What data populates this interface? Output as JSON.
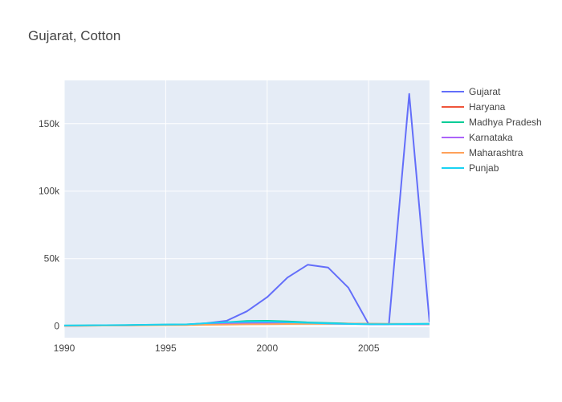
{
  "chart_data": {
    "type": "line",
    "title": "Gujarat, Cotton",
    "xlabel": "",
    "ylabel": "",
    "xlim": [
      1990,
      2008
    ],
    "ylim": [
      -8500,
      182000
    ],
    "x_ticks": [
      1990,
      1995,
      2000,
      2005
    ],
    "x_tick_labels": [
      "1990",
      "1995",
      "2000",
      "2005"
    ],
    "y_ticks": [
      0,
      50000,
      100000,
      150000
    ],
    "y_tick_labels": [
      "0",
      "50k",
      "100k",
      "150k"
    ],
    "grid": true,
    "legend_position": "right",
    "plot_background": "#e5ecf6",
    "x": [
      1990,
      1991,
      1992,
      1993,
      1994,
      1995,
      1996,
      1997,
      1998,
      1999,
      2000,
      2001,
      2002,
      2003,
      2004,
      2005,
      2006,
      2007,
      2008
    ],
    "series": [
      {
        "name": "Gujarat",
        "color": "#636efa",
        "values": [
          300,
          400,
          500,
          600,
          900,
          1100,
          1200,
          2200,
          4000,
          11000,
          21500,
          36000,
          45500,
          43500,
          28500,
          1500,
          1500,
          172000,
          3000
        ]
      },
      {
        "name": "Haryana",
        "color": "#ef553b",
        "values": [
          300,
          350,
          400,
          500,
          700,
          800,
          900,
          1500,
          2000,
          2500,
          2800,
          2600,
          2400,
          2200,
          1900,
          1700,
          1600,
          1500,
          1500
        ]
      },
      {
        "name": "Madhya Pradesh",
        "color": "#00cc96",
        "values": [
          500,
          600,
          700,
          800,
          1000,
          1200,
          1300,
          2000,
          3000,
          3800,
          4000,
          3500,
          2800,
          2400,
          2000,
          1800,
          1700,
          1700,
          1800
        ]
      },
      {
        "name": "Karnataka",
        "color": "#ab63fa",
        "values": [
          300,
          400,
          500,
          600,
          800,
          1000,
          1000,
          1400,
          2000,
          2300,
          2400,
          2200,
          2000,
          1800,
          1700,
          1500,
          1500,
          1500,
          1500
        ]
      },
      {
        "name": "Maharashtra",
        "color": "#ffa15a",
        "values": [
          200,
          300,
          400,
          500,
          600,
          700,
          800,
          1000,
          1200,
          1400,
          1500,
          1600,
          1700,
          1800,
          1900,
          1800,
          1700,
          1600,
          1600
        ]
      },
      {
        "name": "Punjab",
        "color": "#19d3f3",
        "values": [
          500,
          600,
          700,
          800,
          1000,
          1200,
          1300,
          2200,
          3000,
          3300,
          3400,
          3000,
          2500,
          2100,
          1700,
          1500,
          1500,
          1600,
          1700
        ]
      }
    ]
  }
}
